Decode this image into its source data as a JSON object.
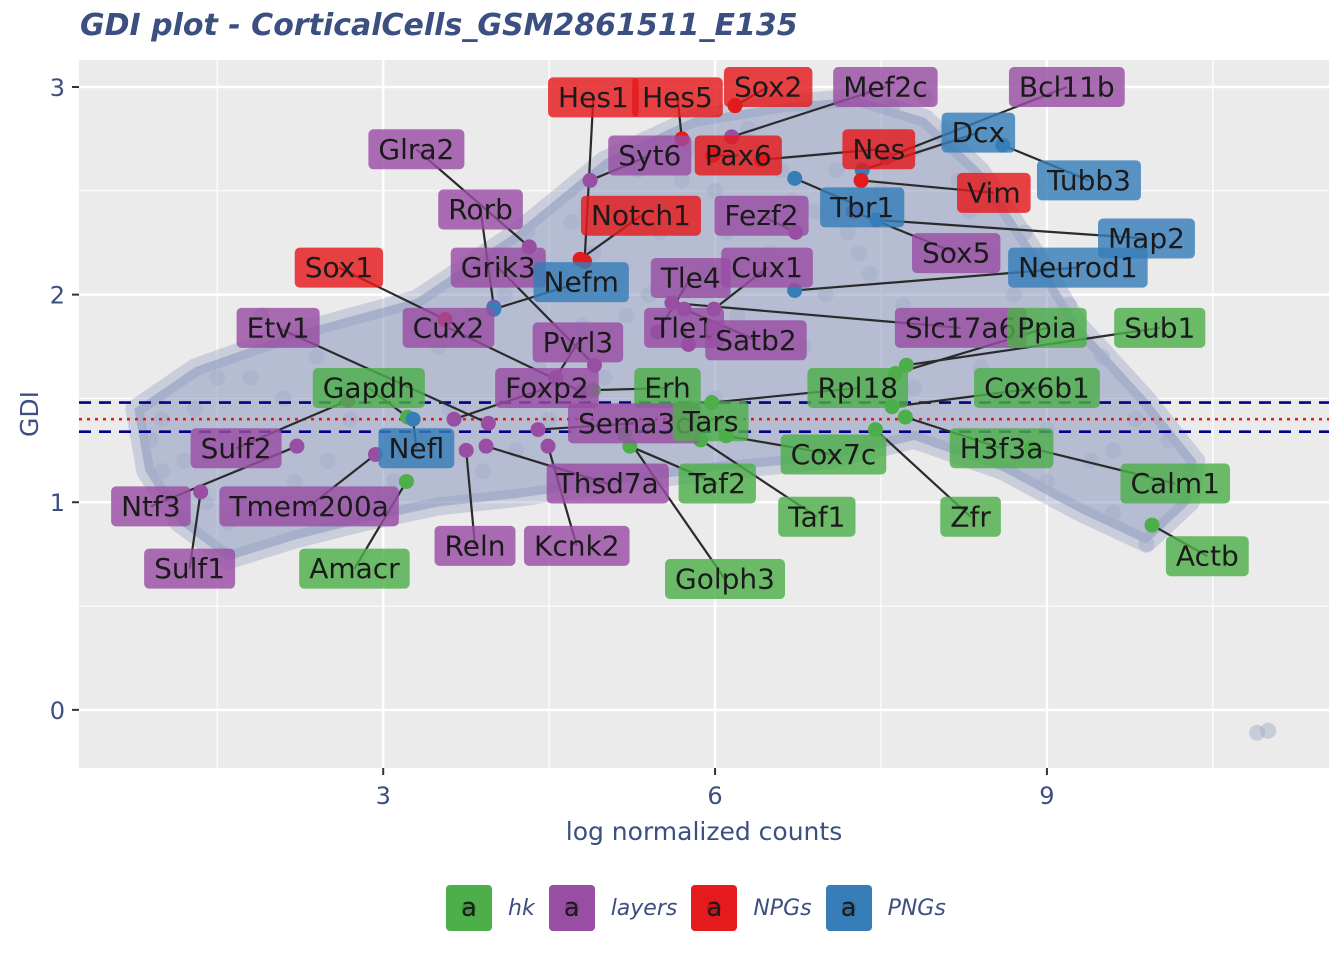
{
  "chart_data": {
    "type": "scatter",
    "title": "GDI plot - CorticalCells_GSM2861511_E135",
    "xlabel": "log normalized counts",
    "ylabel": "GDI",
    "xlim": [
      0.25,
      11.55
    ],
    "ylim": [
      -0.28,
      3.13
    ],
    "x_ticks": [
      3,
      6,
      9
    ],
    "y_ticks": [
      0,
      1,
      2,
      3
    ],
    "grid": true,
    "legend_position": "bottom",
    "reference_lines": [
      {
        "style": "dashed",
        "color": "#00008b",
        "y": 1.48
      },
      {
        "style": "dashed",
        "color": "#00008b",
        "y": 1.34
      },
      {
        "style": "dotted",
        "color": "#e41a1c",
        "y": 1.4
      }
    ],
    "groups": [
      {
        "name": "hk",
        "color": "#4daf4a"
      },
      {
        "name": "layers",
        "color": "#984ea3"
      },
      {
        "name": "NPGs",
        "color": "#e41a1c"
      },
      {
        "name": "PNGs",
        "color": "#377eb8"
      }
    ],
    "background_points": [
      [
        1.8,
        1.6
      ],
      [
        2.1,
        1.5
      ],
      [
        2.4,
        1.7
      ],
      [
        1.9,
        1.9
      ],
      [
        2.6,
        1.55
      ],
      [
        3.0,
        1.6
      ],
      [
        3.2,
        1.5
      ],
      [
        3.5,
        1.75
      ],
      [
        3.8,
        1.9
      ],
      [
        4.1,
        2.0
      ],
      [
        4.3,
        2.3
      ],
      [
        4.6,
        2.1
      ],
      [
        4.9,
        2.2
      ],
      [
        5.1,
        2.4
      ],
      [
        5.3,
        2.6
      ],
      [
        5.5,
        2.3
      ],
      [
        5.8,
        2.7
      ],
      [
        6.0,
        2.5
      ],
      [
        6.3,
        2.8
      ],
      [
        6.6,
        2.6
      ],
      [
        6.9,
        2.4
      ],
      [
        7.2,
        2.3
      ],
      [
        7.5,
        2.5
      ],
      [
        7.8,
        2.7
      ],
      [
        8.1,
        2.8
      ],
      [
        8.3,
        2.4
      ],
      [
        7.6,
        2.9
      ],
      [
        7.9,
        2.95
      ],
      [
        8.5,
        2.2
      ],
      [
        8.7,
        2.0
      ],
      [
        8.9,
        1.8
      ],
      [
        9.1,
        1.6
      ],
      [
        9.3,
        1.5
      ],
      [
        9.0,
        1.35
      ],
      [
        9.6,
        1.25
      ],
      [
        10.0,
        1.1
      ],
      [
        10.3,
        1.15
      ],
      [
        10.2,
        1.05
      ],
      [
        9.6,
        0.95
      ],
      [
        9.9,
        0.8
      ],
      [
        1.0,
        1.4
      ],
      [
        0.9,
        1.3
      ],
      [
        1.2,
        1.2
      ],
      [
        1.4,
        1.0
      ],
      [
        1.6,
        0.9
      ],
      [
        1.3,
        1.45
      ],
      [
        2.2,
        1.1
      ],
      [
        2.8,
        1.0
      ],
      [
        4.2,
        1.25
      ],
      [
        5.0,
        1.6
      ],
      [
        5.6,
        1.8
      ],
      [
        6.2,
        1.9
      ],
      [
        6.8,
        1.75
      ],
      [
        7.0,
        2.0
      ],
      [
        7.4,
        2.1
      ],
      [
        7.7,
        1.95
      ],
      [
        8.0,
        1.8
      ],
      [
        8.6,
        1.5
      ],
      [
        3.4,
        1.3
      ],
      [
        4.8,
        1.85
      ],
      [
        5.9,
        2.1
      ],
      [
        6.5,
        2.2
      ],
      [
        1.0,
        1.15
      ],
      [
        1.5,
        1.6
      ],
      [
        2.0,
        1.3
      ],
      [
        2.5,
        1.2
      ],
      [
        3.6,
        1.45
      ],
      [
        4.4,
        1.65
      ],
      [
        5.2,
        1.9
      ],
      [
        6.1,
        2.3
      ],
      [
        6.7,
        2.45
      ],
      [
        7.3,
        2.2
      ],
      [
        7.1,
        2.6
      ],
      [
        6.4,
        2.65
      ],
      [
        5.7,
        2.55
      ],
      [
        5.4,
        2.0
      ],
      [
        4.7,
        2.35
      ],
      [
        4.0,
        2.15
      ],
      [
        3.3,
        1.85
      ],
      [
        2.7,
        1.4
      ],
      [
        8.2,
        2.55
      ],
      [
        8.8,
        2.3
      ],
      [
        9.2,
        1.95
      ],
      [
        9.5,
        1.7
      ],
      [
        9.8,
        1.4
      ],
      [
        10.1,
        1.3
      ],
      [
        2.3,
        0.95
      ],
      [
        3.1,
        1.1
      ],
      [
        3.9,
        1.15
      ],
      [
        4.5,
        1.4
      ],
      [
        6.0,
        1.5
      ],
      [
        6.9,
        1.6
      ],
      [
        7.8,
        1.55
      ],
      [
        8.4,
        1.65
      ],
      [
        10.9,
        -0.11
      ],
      [
        11.0,
        -0.1
      ],
      [
        9.0,
        1.1
      ],
      [
        9.4,
        1.2
      ]
    ],
    "cloud_polygon": [
      [
        0.75,
        1.45
      ],
      [
        1.3,
        1.65
      ],
      [
        2.2,
        1.82
      ],
      [
        3.3,
        1.98
      ],
      [
        4.2,
        2.3
      ],
      [
        5.0,
        2.65
      ],
      [
        5.8,
        2.85
      ],
      [
        6.6,
        2.92
      ],
      [
        7.3,
        2.95
      ],
      [
        7.9,
        2.85
      ],
      [
        8.4,
        2.6
      ],
      [
        8.9,
        2.2
      ],
      [
        9.3,
        1.85
      ],
      [
        9.9,
        1.5
      ],
      [
        10.35,
        1.2
      ],
      [
        10.3,
        1.0
      ],
      [
        9.9,
        0.8
      ],
      [
        9.3,
        0.95
      ],
      [
        8.6,
        1.15
      ],
      [
        7.8,
        1.3
      ],
      [
        7.0,
        1.2
      ],
      [
        6.0,
        1.15
      ],
      [
        5.0,
        1.08
      ],
      [
        4.2,
        1.02
      ],
      [
        3.5,
        0.98
      ],
      [
        2.8,
        0.9
      ],
      [
        2.2,
        0.82
      ],
      [
        1.6,
        0.72
      ],
      [
        1.15,
        0.9
      ],
      [
        0.85,
        1.15
      ]
    ],
    "highlighted_points": [
      {
        "gene": "Hes1",
        "group": "NPGs",
        "x": 4.82,
        "y": 2.16,
        "lx": 4.9,
        "ly": 2.95
      },
      {
        "gene": "Hes5",
        "group": "NPGs",
        "x": 5.7,
        "y": 2.75,
        "lx": 5.66,
        "ly": 2.95
      },
      {
        "gene": "Sox2",
        "group": "NPGs",
        "x": 6.18,
        "y": 2.91,
        "lx": 6.48,
        "ly": 3.0
      },
      {
        "gene": "Mef2c",
        "group": "layers",
        "x": 6.15,
        "y": 2.76,
        "lx": 7.54,
        "ly": 3.0
      },
      {
        "gene": "Bcl11b",
        "group": "layers",
        "x": 7.55,
        "y": 2.66,
        "lx": 9.18,
        "ly": 3.0
      },
      {
        "gene": "Dcx",
        "group": "PNGs",
        "x": 7.33,
        "y": 2.6,
        "lx": 8.38,
        "ly": 2.78
      },
      {
        "gene": "Tubb3",
        "group": "PNGs",
        "x": 8.6,
        "y": 2.72,
        "lx": 9.38,
        "ly": 2.55
      },
      {
        "gene": "Glra2",
        "group": "layers",
        "x": 4.32,
        "y": 2.23,
        "lx": 3.3,
        "ly": 2.7
      },
      {
        "gene": "Syt6",
        "group": "layers",
        "x": 4.87,
        "y": 2.55,
        "lx": 5.41,
        "ly": 2.67
      },
      {
        "gene": "Pax6",
        "group": "NPGs",
        "x": 5.98,
        "y": 2.67,
        "lx": 6.21,
        "ly": 2.67
      },
      {
        "gene": "Nes",
        "group": "NPGs",
        "x": 6.42,
        "y": 2.65,
        "lx": 7.48,
        "ly": 2.7
      },
      {
        "gene": "Vim",
        "group": "NPGs",
        "x": 7.32,
        "y": 2.55,
        "lx": 8.52,
        "ly": 2.49
      },
      {
        "gene": "Rorb",
        "group": "layers",
        "x": 4.0,
        "y": 1.94,
        "lx": 3.88,
        "ly": 2.41
      },
      {
        "gene": "Notch1",
        "group": "NPGs",
        "x": 4.78,
        "y": 2.17,
        "lx": 5.33,
        "ly": 2.38
      },
      {
        "gene": "Fezf2",
        "group": "layers",
        "x": 6.73,
        "y": 2.3,
        "lx": 6.42,
        "ly": 2.38
      },
      {
        "gene": "Tbr1",
        "group": "PNGs",
        "x": 6.72,
        "y": 2.56,
        "lx": 7.33,
        "ly": 2.42
      },
      {
        "gene": "Map2",
        "group": "PNGs",
        "x": 7.46,
        "y": 2.36,
        "lx": 9.9,
        "ly": 2.27
      },
      {
        "gene": "Sox5",
        "group": "layers",
        "x": 7.25,
        "y": 2.4,
        "lx": 8.18,
        "ly": 2.2
      },
      {
        "gene": "Sox1",
        "group": "NPGs",
        "x": 3.56,
        "y": 1.88,
        "lx": 2.6,
        "ly": 2.13
      },
      {
        "gene": "Grik3",
        "group": "layers",
        "x": 4.91,
        "y": 1.66,
        "lx": 4.04,
        "ly": 2.13
      },
      {
        "gene": "Nefm",
        "group": "PNGs",
        "x": 4.0,
        "y": 1.93,
        "lx": 4.79,
        "ly": 2.06
      },
      {
        "gene": "Tle4",
        "group": "layers",
        "x": 5.48,
        "y": 1.82,
        "lx": 5.78,
        "ly": 2.08
      },
      {
        "gene": "Cux1",
        "group": "layers",
        "x": 5.99,
        "y": 1.93,
        "lx": 6.47,
        "ly": 2.13
      },
      {
        "gene": "Neurod1",
        "group": "PNGs",
        "x": 6.72,
        "y": 2.02,
        "lx": 9.28,
        "ly": 2.13
      },
      {
        "gene": "Etv1",
        "group": "layers",
        "x": 3.95,
        "y": 1.38,
        "lx": 2.05,
        "ly": 1.84
      },
      {
        "gene": "Cux2",
        "group": "layers",
        "x": 4.8,
        "y": 1.53,
        "lx": 3.59,
        "ly": 1.84
      },
      {
        "gene": "Pvrl3",
        "group": "layers",
        "x": 4.56,
        "y": 1.6,
        "lx": 4.76,
        "ly": 1.77
      },
      {
        "gene": "Tle1",
        "group": "layers",
        "x": 5.76,
        "y": 1.76,
        "lx": 5.72,
        "ly": 1.84
      },
      {
        "gene": "Satb2",
        "group": "layers",
        "x": 5.72,
        "y": 1.93,
        "lx": 6.37,
        "ly": 1.78
      },
      {
        "gene": "Slc17a6",
        "group": "layers",
        "x": 5.61,
        "y": 1.96,
        "lx": 8.22,
        "ly": 1.84
      },
      {
        "gene": "Ppia",
        "group": "hk",
        "x": 7.63,
        "y": 1.62,
        "lx": 9.0,
        "ly": 1.84
      },
      {
        "gene": "Sub1",
        "group": "hk",
        "x": 7.73,
        "y": 1.66,
        "lx": 10.02,
        "ly": 1.84
      },
      {
        "gene": "Gapdh",
        "group": "hk",
        "x": 3.22,
        "y": 1.41,
        "lx": 2.87,
        "ly": 1.55
      },
      {
        "gene": "Foxp2",
        "group": "layers",
        "x": 3.64,
        "y": 1.4,
        "lx": 4.48,
        "ly": 1.55
      },
      {
        "gene": "Erh",
        "group": "hk",
        "x": 4.9,
        "y": 1.54,
        "lx": 5.57,
        "ly": 1.55
      },
      {
        "gene": "Rpl18",
        "group": "hk",
        "x": 5.97,
        "y": 1.48,
        "lx": 7.29,
        "ly": 1.55
      },
      {
        "gene": "Cox6b1",
        "group": "hk",
        "x": 7.6,
        "y": 1.46,
        "lx": 8.91,
        "ly": 1.55
      },
      {
        "gene": "Sulf2",
        "group": "layers",
        "x": 2.68,
        "y": 1.49,
        "lx": 1.67,
        "ly": 1.26
      },
      {
        "gene": "Sema3c",
        "group": "layers",
        "x": 4.4,
        "y": 1.35,
        "lx": 5.27,
        "ly": 1.38
      },
      {
        "gene": "Tars",
        "group": "hk",
        "x": 5.82,
        "y": 1.37,
        "lx": 5.96,
        "ly": 1.39
      },
      {
        "gene": "Nefl",
        "group": "PNGs",
        "x": 3.27,
        "y": 1.4,
        "lx": 3.3,
        "ly": 1.26
      },
      {
        "gene": "H3f3a",
        "group": "hk",
        "x": 7.72,
        "y": 1.41,
        "lx": 8.59,
        "ly": 1.26
      },
      {
        "gene": "Cox7c",
        "group": "hk",
        "x": 6.1,
        "y": 1.32,
        "lx": 7.07,
        "ly": 1.23
      },
      {
        "gene": "Ntf3",
        "group": "layers",
        "x": 2.22,
        "y": 1.27,
        "lx": 0.9,
        "ly": 0.98
      },
      {
        "gene": "Tmem200a",
        "group": "layers",
        "x": 2.93,
        "y": 1.23,
        "lx": 2.33,
        "ly": 0.98
      },
      {
        "gene": "Thsd7a",
        "group": "layers",
        "x": 3.93,
        "y": 1.27,
        "lx": 5.03,
        "ly": 1.09
      },
      {
        "gene": "Taf2",
        "group": "hk",
        "x": 5.23,
        "y": 1.27,
        "lx": 6.02,
        "ly": 1.09
      },
      {
        "gene": "Calm1",
        "group": "hk",
        "x": 8.86,
        "y": 1.26,
        "lx": 10.16,
        "ly": 1.09
      },
      {
        "gene": "Amacr",
        "group": "hk",
        "x": 3.21,
        "y": 1.1,
        "lx": 2.74,
        "ly": 0.68
      },
      {
        "gene": "Sulf1",
        "group": "layers",
        "x": 1.35,
        "y": 1.05,
        "lx": 1.25,
        "ly": 0.68
      },
      {
        "gene": "Reln",
        "group": "layers",
        "x": 3.75,
        "y": 1.25,
        "lx": 3.83,
        "ly": 0.79
      },
      {
        "gene": "Kcnk2",
        "group": "layers",
        "x": 4.49,
        "y": 1.27,
        "lx": 4.75,
        "ly": 0.79
      },
      {
        "gene": "Taf1",
        "group": "hk",
        "x": 5.87,
        "y": 1.3,
        "lx": 6.92,
        "ly": 0.93
      },
      {
        "gene": "Zfr",
        "group": "hk",
        "x": 7.45,
        "y": 1.35,
        "lx": 8.31,
        "ly": 0.93
      },
      {
        "gene": "Golph3",
        "group": "hk",
        "x": 5.18,
        "y": 1.33,
        "lx": 6.09,
        "ly": 0.63
      },
      {
        "gene": "Actb",
        "group": "hk",
        "x": 9.95,
        "y": 0.89,
        "lx": 10.45,
        "ly": 0.74
      }
    ]
  },
  "legend": {
    "key_glyph": "a",
    "items": [
      {
        "label": "hk",
        "color": "#4daf4a"
      },
      {
        "label": "layers",
        "color": "#984ea3"
      },
      {
        "label": "NPGs",
        "color": "#e41a1c"
      },
      {
        "label": "PNGs",
        "color": "#377eb8"
      }
    ]
  }
}
